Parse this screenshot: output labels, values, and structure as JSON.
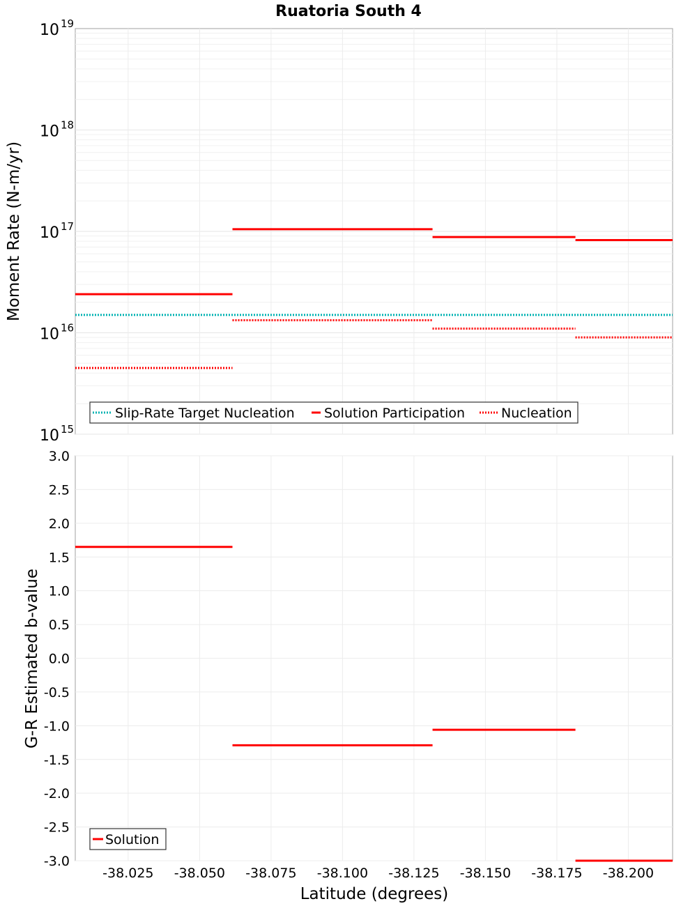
{
  "chart_data": [
    {
      "type": "line",
      "title": "Ruatoria South 4",
      "xlabel": "",
      "ylabel": "Moment Rate (N-m/yr)",
      "yscale": "log",
      "ylim": [
        1000000000000000.0,
        1e+19
      ],
      "xlim": [
        -38.0065,
        -38.2155
      ],
      "y_ticks": [
        {
          "base": "10",
          "exp": "15"
        },
        {
          "base": "10",
          "exp": "16"
        },
        {
          "base": "10",
          "exp": "17"
        },
        {
          "base": "10",
          "exp": "18"
        },
        {
          "base": "10",
          "exp": "19"
        }
      ],
      "legend": [
        "Slip-Rate Target Nucleation",
        "Solution Participation",
        "Nucleation"
      ],
      "series": [
        {
          "name": "Slip-Rate Target Nucleation",
          "color": "#00b2b2",
          "style": "dotted",
          "segments": [
            {
              "x0": -38.0065,
              "x1": -38.2155,
              "y": 1.5e+16
            }
          ]
        },
        {
          "name": "Solution Participation",
          "color": "#ff0000",
          "style": "solid",
          "segments": [
            {
              "x0": -38.0065,
              "x1": -38.0615,
              "y": 2.4e+16
            },
            {
              "x0": -38.0615,
              "x1": -38.1315,
              "y": 1.05e+17
            },
            {
              "x0": -38.1315,
              "x1": -38.1815,
              "y": 8.8e+16
            },
            {
              "x0": -38.1815,
              "x1": -38.2155,
              "y": 8.2e+16
            }
          ]
        },
        {
          "name": "Nucleation",
          "color": "#ff0000",
          "style": "dotted",
          "segments": [
            {
              "x0": -38.0065,
              "x1": -38.0615,
              "y": 4500000000000000.0
            },
            {
              "x0": -38.0615,
              "x1": -38.1315,
              "y": 1.33e+16
            },
            {
              "x0": -38.1315,
              "x1": -38.1815,
              "y": 1.1e+16
            },
            {
              "x0": -38.1815,
              "x1": -38.2155,
              "y": 9000000000000000.0
            }
          ]
        }
      ]
    },
    {
      "type": "line",
      "title": "",
      "xlabel": "Latitude (degrees)",
      "ylabel": "G-R Estimated b-value",
      "ylim": [
        -3.0,
        3.0
      ],
      "xlim": [
        -38.0065,
        -38.2155
      ],
      "x_ticks": [
        -38.025,
        -38.05,
        -38.075,
        -38.1,
        -38.125,
        -38.15,
        -38.175,
        -38.2
      ],
      "x_tick_labels": [
        "-38.025",
        "-38.050",
        "-38.075",
        "-38.100",
        "-38.125",
        "-38.150",
        "-38.175",
        "-38.200"
      ],
      "y_ticks": [
        3.0,
        2.5,
        2.0,
        1.5,
        1.0,
        0.5,
        0.0,
        -0.5,
        -1.0,
        -1.5,
        -2.0,
        -2.5,
        -3.0
      ],
      "y_tick_labels": [
        "3.0",
        "2.5",
        "2.0",
        "1.5",
        "1.0",
        "0.5",
        "0.0",
        "-0.5",
        "-1.0",
        "-1.5",
        "-2.0",
        "-2.5",
        "-3.0"
      ],
      "legend": [
        "Solution"
      ],
      "series": [
        {
          "name": "Solution",
          "color": "#ff0000",
          "style": "solid",
          "segments": [
            {
              "x0": -38.0065,
              "x1": -38.0615,
              "y": 1.65
            },
            {
              "x0": -38.0615,
              "x1": -38.1315,
              "y": -1.29
            },
            {
              "x0": -38.1315,
              "x1": -38.1815,
              "y": -1.06
            },
            {
              "x0": -38.1815,
              "x1": -38.2155,
              "y": -3.0
            }
          ]
        }
      ]
    }
  ]
}
